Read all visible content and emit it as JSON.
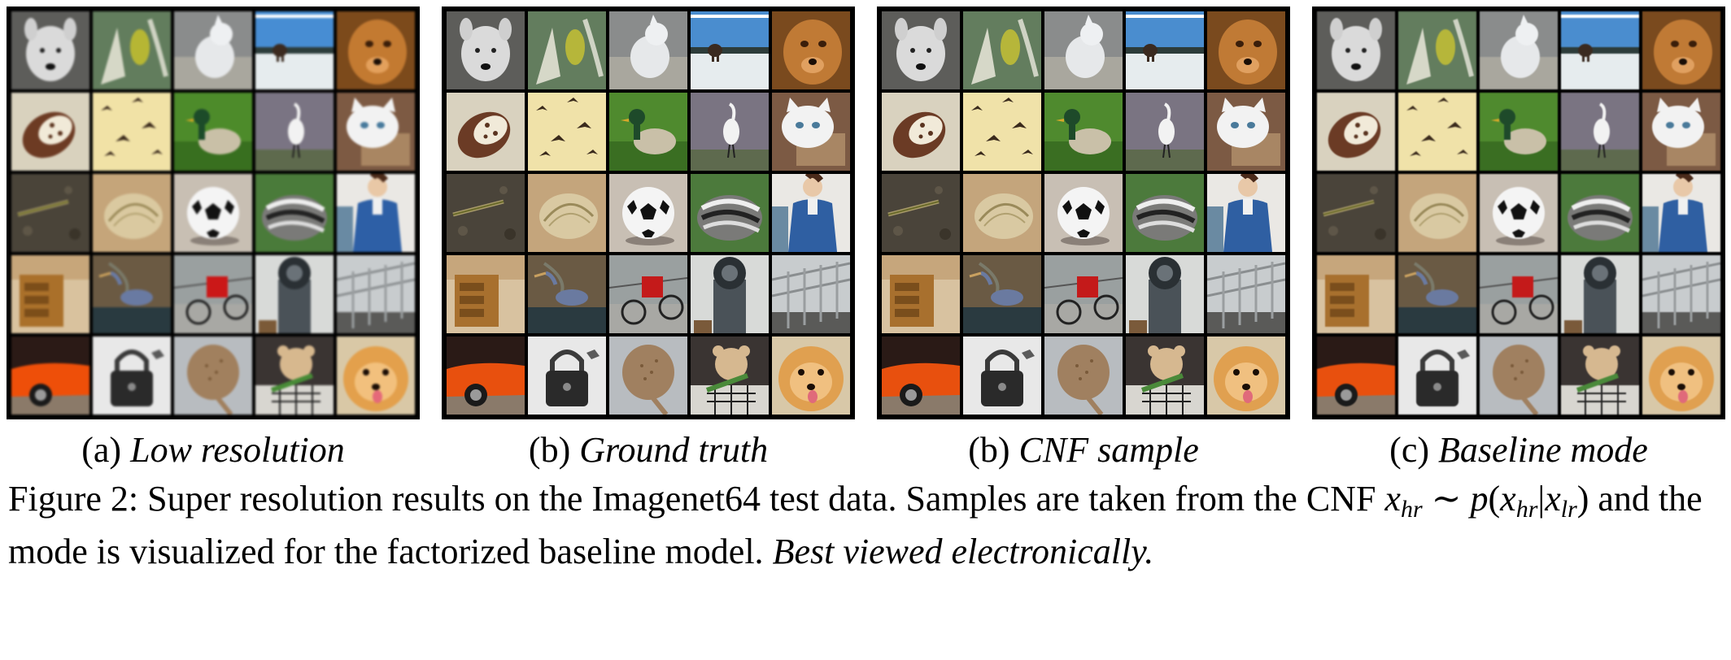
{
  "panels": [
    {
      "prefix": "(a)",
      "name": "Low resolution"
    },
    {
      "prefix": "(b)",
      "name": "Ground truth"
    },
    {
      "prefix": "(b)",
      "name": "CNF sample"
    },
    {
      "prefix": "(c)",
      "name": "Baseline mode"
    }
  ],
  "caption": {
    "part1": "Figure 2: Super resolution results on the Imagenet64 test data. Samples are taken from the CNF",
    "part2": "and the mode is visualized for the factorized baseline model.",
    "emph": "Best viewed electronically.",
    "math": {
      "x": "x",
      "hr": "hr",
      "lr": "lr",
      "sim": "∼",
      "p": "p"
    }
  }
}
